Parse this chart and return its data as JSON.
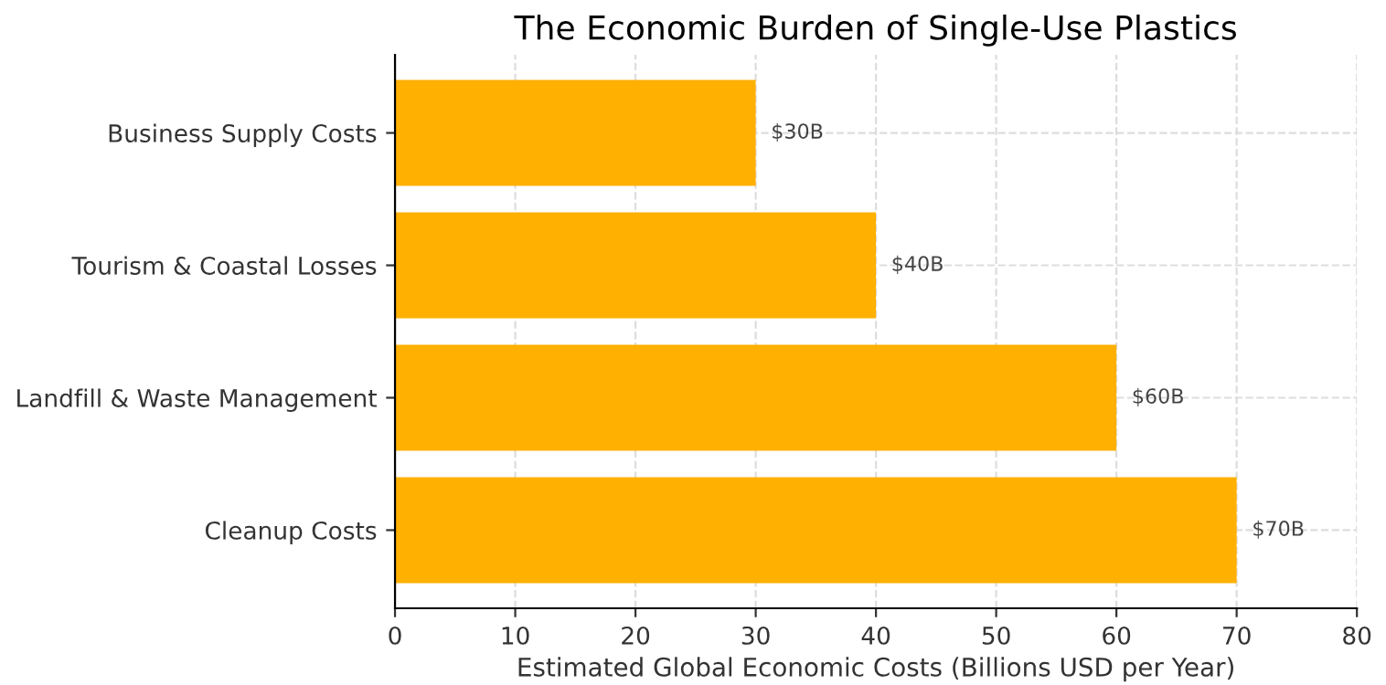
{
  "chart_data": {
    "type": "bar",
    "orientation": "horizontal",
    "title": "The Economic Burden of Single-Use Plastics",
    "xlabel": "Estimated Global Economic Costs (Billions USD per Year)",
    "categories": [
      "Business Supply Costs",
      "Tourism & Coastal Losses",
      "Landfill & Waste Management",
      "Cleanup Costs"
    ],
    "values": [
      30,
      40,
      60,
      70
    ],
    "value_labels": [
      "$30B",
      "$40B",
      "$60B",
      "$70B"
    ],
    "color": "#ffb000",
    "xlim": [
      0,
      80
    ],
    "xticks": [
      0,
      10,
      20,
      30,
      40,
      50,
      60,
      70,
      80
    ],
    "grid": true
  }
}
